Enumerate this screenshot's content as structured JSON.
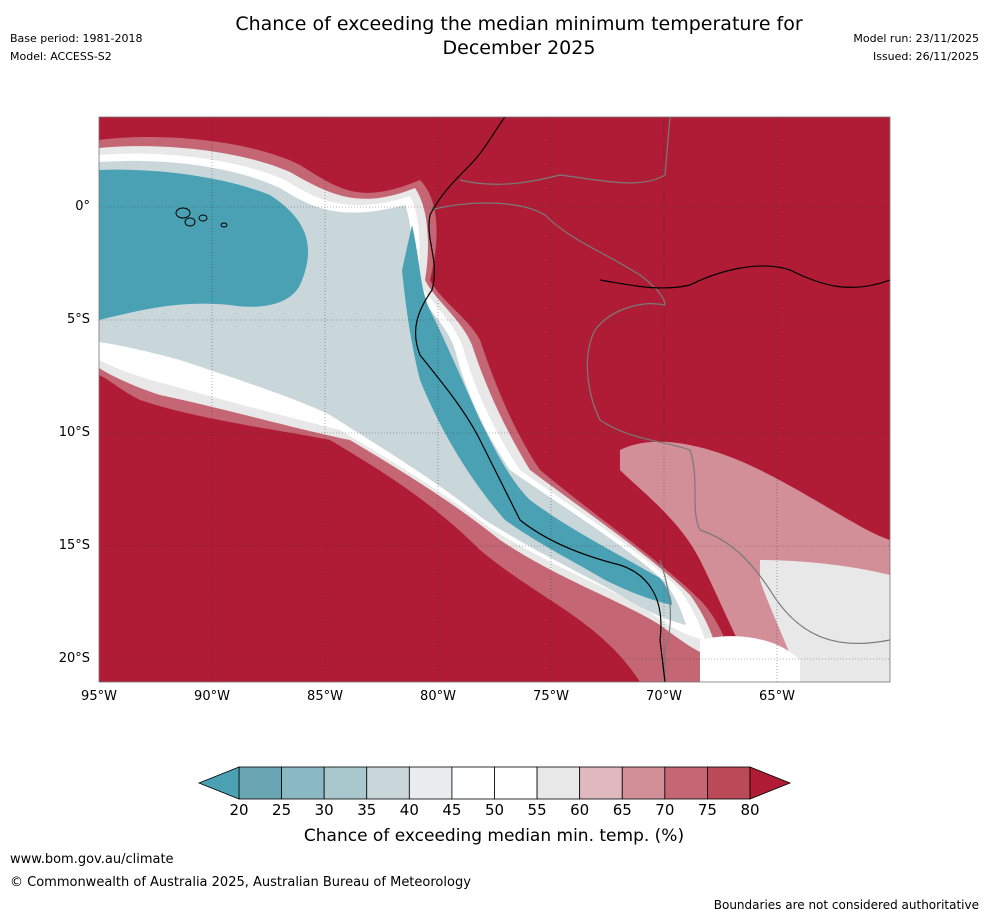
{
  "header": {
    "title_line1": "Chance of exceeding the median minimum temperature for",
    "title_line2": "December 2025",
    "base_period": "Base period: 1981-2018",
    "model": "Model: ACCESS-S2",
    "model_run": "Model run: 23/11/2025",
    "issued": "Issued: 26/11/2025"
  },
  "map": {
    "lat_labels": [
      "0°",
      "5°S",
      "10°S",
      "15°S",
      "20°S"
    ],
    "lon_labels": [
      "95°W",
      "90°W",
      "85°W",
      "80°W",
      "75°W",
      "70°W",
      "65°W"
    ],
    "dominant_category": "80+"
  },
  "colorbar": {
    "labels": [
      "20",
      "25",
      "30",
      "35",
      "40",
      "45",
      "50",
      "55",
      "60",
      "65",
      "70",
      "75",
      "80"
    ],
    "colors": [
      "#6aa5b3",
      "#8ab8c3",
      "#a9c8cd",
      "#c9d7da",
      "#e9edef",
      "#ffffff",
      "#ffffff",
      "#e8e8e8",
      "#dfb9bf",
      "#d28f98",
      "#c46673",
      "#bb4a58"
    ],
    "low_color": "#4aa1b4",
    "high_color": "#b01c36",
    "title": "Chance of exceeding median min. temp. (%)"
  },
  "footer": {
    "url": "www.bom.gov.au/climate",
    "copyright": "© Commonwealth of Australia 2025, Australian Bureau of Meteorology",
    "disclaimer": "Boundaries are not considered authoritative"
  }
}
